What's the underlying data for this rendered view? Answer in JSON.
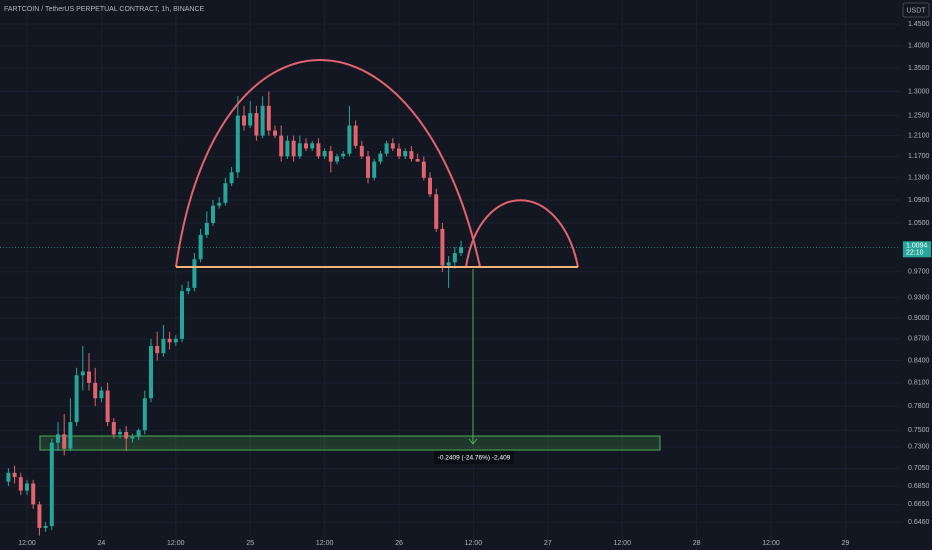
{
  "chart_data": {
    "type": "candlestick",
    "title": "FARTCOIN / TetherUS PERPETUAL CONTRACT, 1h, BINANCE",
    "currency": "USDT",
    "log_scale": true,
    "grid": true,
    "up_color": "#26a69a",
    "down_color": "#e0636d",
    "ylim": [
      0.6175,
      1.508
    ],
    "yticks": [
      {
        "value": 1.45,
        "label": "1.4500"
      },
      {
        "value": 1.4,
        "label": "1.4000"
      },
      {
        "value": 1.35,
        "label": "1.3500"
      },
      {
        "value": 1.3,
        "label": "1.3000"
      },
      {
        "value": 1.25,
        "label": "1.2500"
      },
      {
        "value": 1.21,
        "label": "1.2100"
      },
      {
        "value": 1.17,
        "label": "1.1700"
      },
      {
        "value": 1.13,
        "label": "1.1300"
      },
      {
        "value": 1.09,
        "label": "1.0900"
      },
      {
        "value": 1.05,
        "label": "1.0500"
      },
      {
        "value": 0.97,
        "label": "0.9700"
      },
      {
        "value": 0.93,
        "label": "0.9300"
      },
      {
        "value": 0.9,
        "label": "0.9000"
      },
      {
        "value": 0.87,
        "label": "0.8700"
      },
      {
        "value": 0.84,
        "label": "0.8400"
      },
      {
        "value": 0.81,
        "label": "0.8100"
      },
      {
        "value": 0.78,
        "label": "0.7800"
      },
      {
        "value": 0.75,
        "label": "0.7500"
      },
      {
        "value": 0.73,
        "label": "0.7300"
      },
      {
        "value": 0.705,
        "label": "0.7050"
      },
      {
        "value": 0.685,
        "label": "0.6850"
      },
      {
        "value": 0.665,
        "label": "0.6650"
      },
      {
        "value": 0.646,
        "label": "0.6460"
      }
    ],
    "xlim": [
      -1.355,
      143.8
    ],
    "xticks": [
      {
        "value": 3,
        "label": "12:00"
      },
      {
        "value": 15,
        "label": "24"
      },
      {
        "value": 27,
        "label": "12:00"
      },
      {
        "value": 39,
        "label": "25"
      },
      {
        "value": 51,
        "label": "12:00"
      },
      {
        "value": 63,
        "label": "26"
      },
      {
        "value": 75,
        "label": "12:00"
      },
      {
        "value": 87,
        "label": "27"
      },
      {
        "value": 99,
        "label": "12:00"
      },
      {
        "value": 111,
        "label": "28"
      },
      {
        "value": 123,
        "label": "12:00"
      },
      {
        "value": 135,
        "label": "29"
      }
    ],
    "candles": {
      "open": [
        0.69,
        0.7,
        0.695,
        0.68,
        0.688,
        0.665,
        0.64,
        0.642,
        0.735,
        0.745,
        0.728,
        0.76,
        0.82,
        0.825,
        0.81,
        0.79,
        0.8,
        0.76,
        0.745,
        0.748,
        0.74,
        0.742,
        0.75,
        0.79,
        0.86,
        0.85,
        0.87,
        0.865,
        0.87,
        0.94,
        0.945,
        0.99,
        1.03,
        1.05,
        1.08,
        1.085,
        1.12,
        1.14,
        1.25,
        1.23,
        1.255,
        1.21,
        1.27,
        1.22,
        1.21,
        1.17,
        1.2,
        1.17,
        1.195,
        1.185,
        1.195,
        1.17,
        1.18,
        1.16,
        1.17,
        1.175,
        1.23,
        1.19,
        1.17,
        1.13,
        1.16,
        1.175,
        1.195,
        1.185,
        1.17,
        1.18,
        1.165,
        1.16,
        1.13,
        1.1,
        1.04,
        0.98,
        0.985,
        1.0
      ],
      "high": [
        0.705,
        0.708,
        0.7,
        0.692,
        0.692,
        0.668,
        0.646,
        0.74,
        0.76,
        0.77,
        0.79,
        0.83,
        0.86,
        0.85,
        0.83,
        0.805,
        0.81,
        0.765,
        0.752,
        0.755,
        0.746,
        0.752,
        0.8,
        0.87,
        0.88,
        0.89,
        0.88,
        0.875,
        0.95,
        0.955,
        1.0,
        1.04,
        1.07,
        1.09,
        1.095,
        1.13,
        1.15,
        1.29,
        1.27,
        1.28,
        1.27,
        1.29,
        1.3,
        1.23,
        1.23,
        1.21,
        1.21,
        1.21,
        1.205,
        1.2,
        1.205,
        1.185,
        1.19,
        1.175,
        1.18,
        1.27,
        1.24,
        1.2,
        1.18,
        1.165,
        1.18,
        1.2,
        1.205,
        1.195,
        1.185,
        1.19,
        1.175,
        1.17,
        1.14,
        1.11,
        1.05,
        0.995,
        1.01,
        1.02
      ],
      "low": [
        0.685,
        0.688,
        0.675,
        0.675,
        0.66,
        0.632,
        0.636,
        0.638,
        0.725,
        0.72,
        0.725,
        0.755,
        0.8,
        0.8,
        0.78,
        0.785,
        0.755,
        0.74,
        0.74,
        0.725,
        0.735,
        0.738,
        0.745,
        0.785,
        0.84,
        0.845,
        0.855,
        0.86,
        0.865,
        0.935,
        0.94,
        0.985,
        1.025,
        1.045,
        1.075,
        1.08,
        1.115,
        1.13,
        1.22,
        1.225,
        1.2,
        1.205,
        1.21,
        1.205,
        1.16,
        1.165,
        1.16,
        1.165,
        1.18,
        1.18,
        1.165,
        1.165,
        1.14,
        1.155,
        1.165,
        1.17,
        1.185,
        1.165,
        1.12,
        1.125,
        1.155,
        1.17,
        1.18,
        1.165,
        1.165,
        1.16,
        1.16,
        1.125,
        1.095,
        1.035,
        0.97,
        0.945,
        0.975,
        0.995
      ],
      "close": [
        0.7,
        0.695,
        0.68,
        0.688,
        0.665,
        0.64,
        0.642,
        0.735,
        0.745,
        0.728,
        0.76,
        0.82,
        0.825,
        0.81,
        0.79,
        0.8,
        0.76,
        0.745,
        0.748,
        0.74,
        0.742,
        0.75,
        0.79,
        0.86,
        0.85,
        0.87,
        0.865,
        0.87,
        0.94,
        0.945,
        0.99,
        1.03,
        1.05,
        1.08,
        1.085,
        1.12,
        1.14,
        1.25,
        1.23,
        1.255,
        1.21,
        1.27,
        1.22,
        1.21,
        1.17,
        1.2,
        1.17,
        1.195,
        1.185,
        1.195,
        1.17,
        1.18,
        1.16,
        1.17,
        1.175,
        1.23,
        1.19,
        1.17,
        1.13,
        1.16,
        1.175,
        1.195,
        1.185,
        1.17,
        1.18,
        1.165,
        1.16,
        1.13,
        1.1,
        1.04,
        0.98,
        0.985,
        1.0,
        1.0094
      ]
    },
    "last_price": {
      "value": 1.0094,
      "label": "1.0094"
    },
    "countdown": "22:10",
    "measure_label": "-0.2409 (-24.76%) -2,409"
  }
}
